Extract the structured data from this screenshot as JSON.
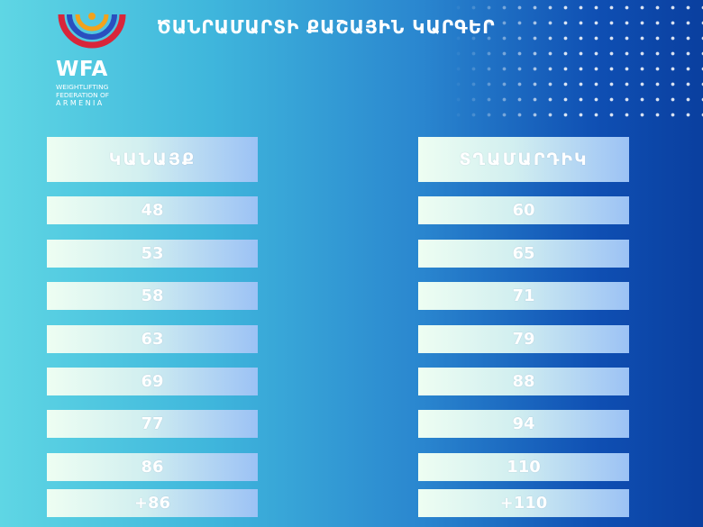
{
  "title": "ԾԱՆՐԱՄԱՐՏԻ ՔԱՇԱՅԻՆ ԿԱՐԳԵՐ",
  "logo": {
    "name": "WFA",
    "line1": "WEIGHTLIFTING",
    "line2": "FEDERATION OF",
    "line3": "ARMENIA",
    "colors": {
      "red": "#d8263a",
      "blue": "#2a4fbf",
      "orange": "#f2a21c"
    }
  },
  "women": {
    "header": "ԿԱՆԱՅՔ",
    "categories": [
      "48",
      "53",
      "58",
      "63",
      "69",
      "77",
      "86",
      "+86"
    ]
  },
  "men": {
    "header": "ՏՂԱՄԱՐԴԻԿ",
    "categories": [
      "60",
      "65",
      "71",
      "79",
      "88",
      "94",
      "110",
      "+110"
    ]
  }
}
